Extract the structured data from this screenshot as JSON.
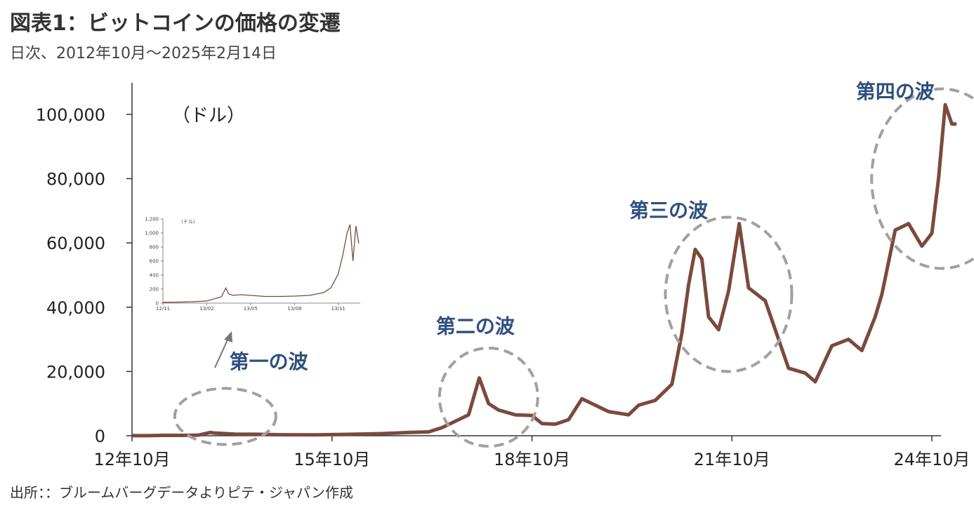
{
  "title": "図表1：ビットコインの価格の変遷",
  "subtitle": "日次、2012年10月～2025年2月14日",
  "source": "出所：：ブルームバーグデータよりピテ・ジャパン作成",
  "chart_data": {
    "type": "line",
    "unit_label": "（ドル）",
    "ylim": [
      0,
      110000
    ],
    "yticks": [
      0,
      20000,
      40000,
      60000,
      80000,
      100000
    ],
    "ytick_labels": [
      "0",
      "20,000",
      "40,000",
      "60,000",
      "80,000",
      "100,000"
    ],
    "xlim": [
      2012.75,
      2025.25
    ],
    "xticks": [
      2012.75,
      2015.75,
      2018.75,
      2021.75,
      2024.75
    ],
    "xtick_labels": [
      "12年10月",
      "15年10月",
      "18年10月",
      "21年10月",
      "24年10月"
    ],
    "series_color": "#7b4a3d",
    "series": [
      {
        "x": [
          2012.75,
          2013.0,
          2013.25,
          2013.5,
          2013.75,
          2013.92,
          2014.0,
          2014.3,
          2014.6,
          2015.0,
          2015.5,
          2016.0,
          2016.5,
          2016.9,
          2017.2,
          2017.4,
          2017.6,
          2017.8,
          2017.96,
          2018.1,
          2018.25,
          2018.5,
          2018.75,
          2018.9,
          2019.1,
          2019.3,
          2019.5,
          2019.7,
          2019.9,
          2020.2,
          2020.35,
          2020.6,
          2020.85,
          2021.0,
          2021.1,
          2021.2,
          2021.3,
          2021.4,
          2021.55,
          2021.7,
          2021.86,
          2022.0,
          2022.25,
          2022.45,
          2022.6,
          2022.85,
          2023.0,
          2023.25,
          2023.5,
          2023.7,
          2023.9,
          2024.0,
          2024.2,
          2024.4,
          2024.6,
          2024.75,
          2024.85,
          2024.95,
          2025.05,
          2025.12
        ],
        "y": [
          12,
          15,
          130,
          100,
          200,
          1000,
          800,
          500,
          450,
          300,
          260,
          430,
          650,
          1000,
          1200,
          2500,
          4500,
          6500,
          18000,
          10000,
          8000,
          6500,
          6300,
          3800,
          3600,
          5000,
          11500,
          9500,
          7500,
          6500,
          9500,
          11000,
          16000,
          32000,
          47000,
          58000,
          55000,
          37000,
          33000,
          45000,
          66000,
          46000,
          42000,
          30000,
          21000,
          19500,
          16800,
          28000,
          30000,
          26500,
          37000,
          44000,
          64000,
          66000,
          59000,
          63000,
          80000,
          103000,
          97000,
          97000
        ]
      }
    ],
    "annotations": [
      {
        "text": "第一の波",
        "x": 2014.8,
        "y": 21000
      },
      {
        "text": "第二の波",
        "x": 2017.9,
        "y": 32000
      },
      {
        "text": "第三の波",
        "x": 2020.8,
        "y": 68000
      },
      {
        "text": "第四の波",
        "x": 2024.2,
        "y": 105000
      }
    ],
    "waves": [
      {
        "name": "wave-1",
        "cx": 2014.15,
        "cy": 6000
      },
      {
        "name": "wave-2",
        "cx": 2018.1,
        "cy": 12000
      },
      {
        "name": "wave-3",
        "cx": 2021.7,
        "cy": 44000
      },
      {
        "name": "wave-4",
        "cx": 2024.9,
        "cy": 80000
      }
    ],
    "inset": {
      "unit_label": "（ドル）",
      "ylim": [
        0,
        1200
      ],
      "yticks": [
        0,
        200,
        400,
        600,
        800,
        1000,
        1200
      ],
      "ytick_labels": [
        "0",
        "200",
        "400",
        "600",
        "800",
        "1,000",
        "1,200"
      ],
      "xlim": [
        0,
        13.5
      ],
      "xticks": [
        0,
        3,
        6,
        9,
        12
      ],
      "xtick_labels": [
        "12/11",
        "13/02",
        "13/05",
        "13/08",
        "13/11"
      ],
      "series": [
        {
          "x": [
            0,
            1,
            2,
            3,
            4,
            4.3,
            4.5,
            4.8,
            5.3,
            6,
            7,
            8,
            9,
            10,
            11,
            11.5,
            12,
            12.3,
            12.6,
            12.8,
            13.0,
            13.2,
            13.4
          ],
          "y": [
            12,
            14,
            20,
            30,
            90,
            215,
            130,
            110,
            120,
            110,
            95,
            95,
            100,
            110,
            150,
            220,
            420,
            680,
            1000,
            1120,
            600,
            1100,
            850
          ]
        }
      ]
    }
  }
}
